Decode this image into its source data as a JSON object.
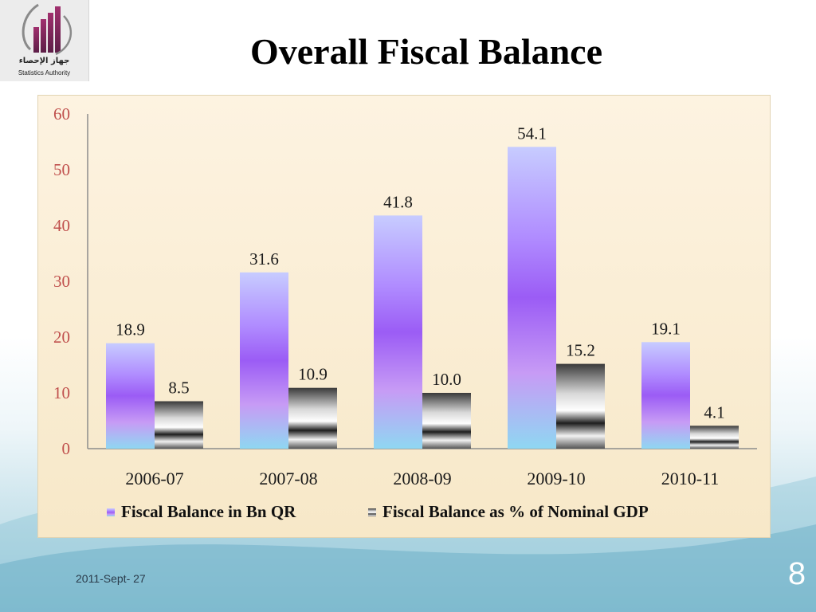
{
  "slide": {
    "title": "Overall Fiscal Balance",
    "date": "2011-Sept- 27",
    "page_number": "8"
  },
  "logo": {
    "arabic_text": "جهاز الإحصاء",
    "english_text": "Statistics Authority"
  },
  "colors": {
    "series1_top": "#c7ccff",
    "series1_mid": "#9b5cf5",
    "series1_bottom": "#8fd7f2",
    "series2_dark": "#1e1e1e",
    "series2_light": "#f2f2f2",
    "tick_label": "#c0504d"
  },
  "chart_data": {
    "type": "bar",
    "title": "",
    "xlabel": "",
    "ylabel": "",
    "categories": [
      "2006-07",
      "2007-08",
      "2008-09",
      "2009-10",
      "2010-11"
    ],
    "series": [
      {
        "name": "Fiscal Balance in Bn QR",
        "values": [
          18.9,
          31.6,
          41.8,
          54.1,
          19.1
        ],
        "labels": [
          "18.9",
          "31.6",
          "41.8",
          "54.1",
          "19.1"
        ]
      },
      {
        "name": "Fiscal Balance as % of Nominal GDP",
        "values": [
          8.5,
          10.9,
          10.0,
          15.2,
          4.1
        ],
        "labels": [
          "8.5",
          "10.9",
          "10.0",
          "15.2",
          "4.1"
        ]
      }
    ],
    "ylim": [
      0,
      60
    ],
    "yticks": [
      0,
      10,
      20,
      30,
      40,
      50,
      60
    ],
    "grid": false,
    "legend_position": "bottom"
  }
}
